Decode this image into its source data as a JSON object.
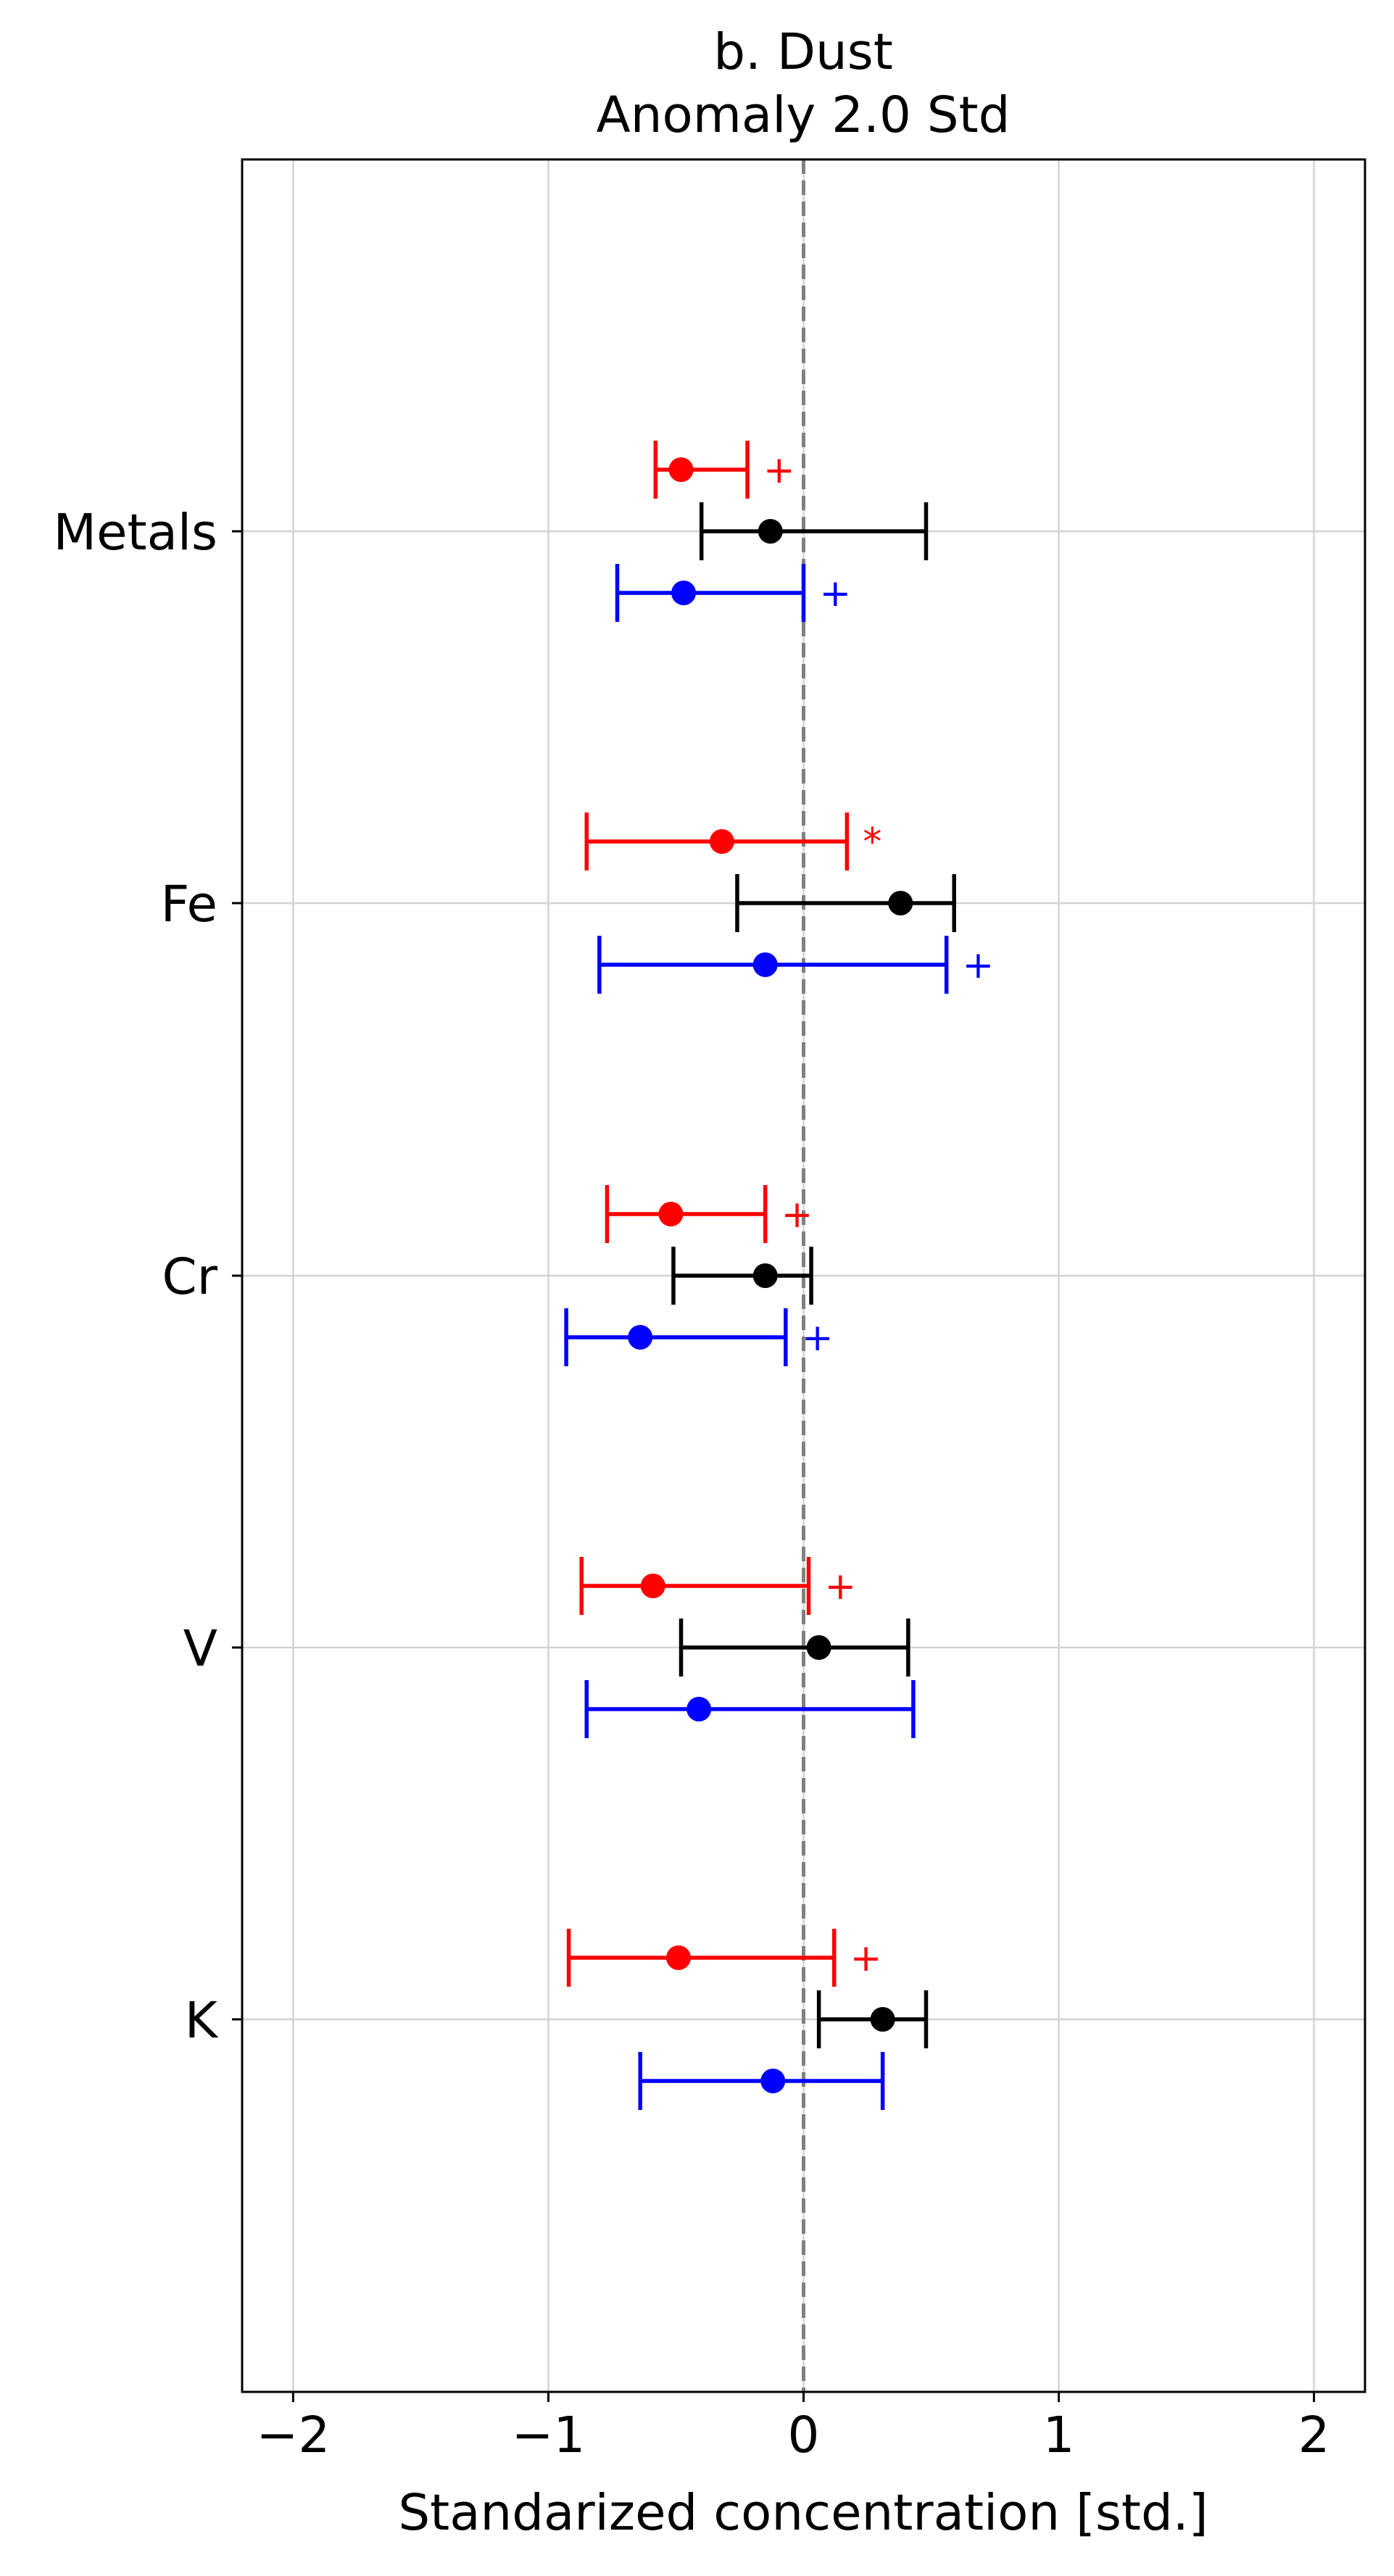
{
  "chart_data": {
    "type": "errorbar",
    "title": "b. Dust",
    "subtitle": "Anomaly 2.0 Std",
    "xlabel": "Standarized concentration [std.]",
    "ylabel": "",
    "xlim": [
      -2.2,
      2.2
    ],
    "xticks": [
      -2,
      -1,
      0,
      1,
      2
    ],
    "xtick_labels": [
      "−2",
      "−1",
      "0",
      "1",
      "2"
    ],
    "grid": true,
    "reference_line_x": 0,
    "categories": [
      "Metals",
      "Fe",
      "Cr",
      "V",
      "K"
    ],
    "series": [
      {
        "color": "#ff0000",
        "offset": "above",
        "points": [
          {
            "category": "Metals",
            "value": -0.48,
            "low": -0.58,
            "high": -0.22,
            "marker": "+"
          },
          {
            "category": "Fe",
            "value": -0.32,
            "low": -0.85,
            "high": 0.17,
            "marker": "*"
          },
          {
            "category": "Cr",
            "value": -0.52,
            "low": -0.77,
            "high": -0.15,
            "marker": "+"
          },
          {
            "category": "V",
            "value": -0.59,
            "low": -0.87,
            "high": 0.02,
            "marker": "+"
          },
          {
            "category": "K",
            "value": -0.49,
            "low": -0.92,
            "high": 0.12,
            "marker": "+"
          }
        ]
      },
      {
        "color": "#000000",
        "offset": "center",
        "points": [
          {
            "category": "Metals",
            "value": -0.13,
            "low": -0.4,
            "high": 0.48,
            "marker": ""
          },
          {
            "category": "Fe",
            "value": 0.38,
            "low": -0.26,
            "high": 0.59,
            "marker": ""
          },
          {
            "category": "Cr",
            "value": -0.15,
            "low": -0.51,
            "high": 0.03,
            "marker": ""
          },
          {
            "category": "V",
            "value": 0.06,
            "low": -0.48,
            "high": 0.41,
            "marker": ""
          },
          {
            "category": "K",
            "value": 0.31,
            "low": 0.06,
            "high": 0.48,
            "marker": ""
          }
        ]
      },
      {
        "color": "#0000ff",
        "offset": "below",
        "points": [
          {
            "category": "Metals",
            "value": -0.47,
            "low": -0.73,
            "high": 0.0,
            "marker": "+"
          },
          {
            "category": "Fe",
            "value": -0.15,
            "low": -0.8,
            "high": 0.56,
            "marker": "+"
          },
          {
            "category": "Cr",
            "value": -0.64,
            "low": -0.93,
            "high": -0.07,
            "marker": "+"
          },
          {
            "category": "V",
            "value": -0.41,
            "low": -0.85,
            "high": 0.43,
            "marker": ""
          },
          {
            "category": "K",
            "value": -0.12,
            "low": -0.64,
            "high": 0.31,
            "marker": ""
          }
        ]
      }
    ]
  }
}
